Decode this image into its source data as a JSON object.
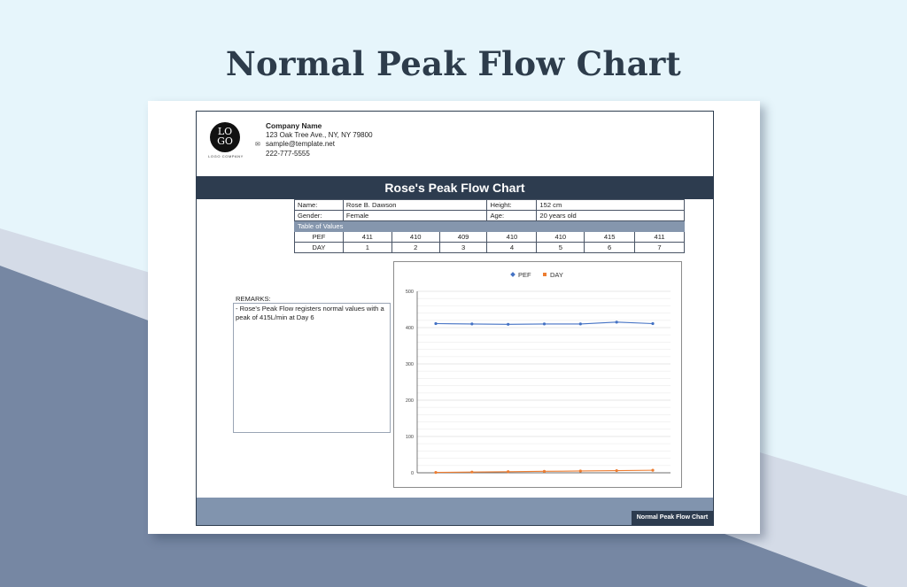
{
  "page": {
    "headline": "Normal Peak Flow Chart"
  },
  "company": {
    "logo_line1": "LO",
    "logo_line2": "GO",
    "logo_sub": "LOGO COMPANY",
    "name": "Company Name",
    "address": "123 Oak Tree Ave., NY, NY 79800",
    "email": "sample@template.net",
    "phone": "222-777-5555",
    "mail_icon": "envelope-icon"
  },
  "sheet": {
    "title": "Rose's Peak Flow Chart",
    "footer_label": "Normal Peak Flow Chart"
  },
  "patient": {
    "name_label": "Name:",
    "name": "Rose B. Dawson",
    "height_label": "Height:",
    "height": "152 cm",
    "gender_label": "Gender:",
    "gender": "Female",
    "age_label": "Age:",
    "age": "20 years old"
  },
  "values_table": {
    "section_label": "Table of Values",
    "pef_label": "PEF",
    "day_label": "DAY",
    "pef": [
      "411",
      "410",
      "409",
      "410",
      "410",
      "415",
      "411"
    ],
    "day": [
      "1",
      "2",
      "3",
      "4",
      "5",
      "6",
      "7"
    ]
  },
  "remarks": {
    "label": "REMARKS:",
    "text": "- Rose's Peak Flow registers normal values with a peak of 415L/min at Day 6"
  },
  "colors": {
    "pef": "#4472c4",
    "day": "#ed7d31",
    "dark": "#2d3c4f",
    "footer": "#8194ae"
  },
  "chart_data": {
    "type": "line",
    "x": [
      1,
      2,
      3,
      4,
      5,
      6,
      7
    ],
    "series": [
      {
        "name": "PEF",
        "values": [
          411,
          410,
          409,
          410,
          410,
          415,
          411
        ]
      },
      {
        "name": "DAY",
        "values": [
          1,
          2,
          3,
          4,
          5,
          6,
          7
        ]
      }
    ],
    "ylim": [
      0,
      500
    ],
    "yticks": [
      "0",
      "100",
      "200",
      "300",
      "400",
      "500"
    ],
    "legend": "top-center",
    "grid": true
  }
}
